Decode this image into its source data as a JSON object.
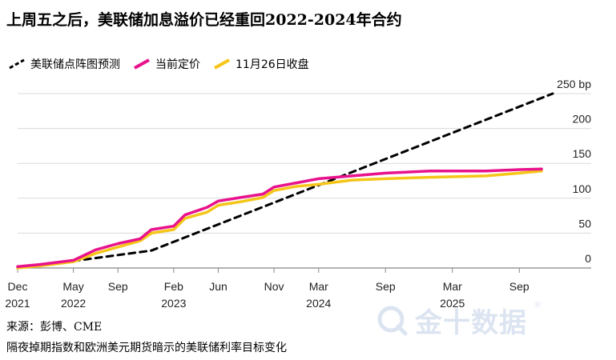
{
  "title": "上周五之后，美联储加息溢价已经重回2022-2024年合约",
  "legend": [
    {
      "label": "美联储点阵图预测",
      "color": "#000000",
      "style": "dashed"
    },
    {
      "label": "当前定价",
      "color": "#e8128c",
      "style": "solid"
    },
    {
      "label": "11月26日收盘",
      "color": "#f5c518",
      "style": "solid"
    }
  ],
  "footer": {
    "source": "来源：彭博、CME",
    "note": "隔夜掉期指数和欧洲美元期货暗示的美联储利率目标变化"
  },
  "watermark": {
    "text": "金十数据",
    "registered": "®"
  },
  "chart_data": {
    "type": "line",
    "ylabel_unit": "bp",
    "ylim": [
      0,
      250
    ],
    "yticks": [
      0,
      50,
      100,
      150,
      200,
      250
    ],
    "ytick_labels": [
      "0",
      "50",
      "100",
      "150",
      "200",
      "250 bp"
    ],
    "xlim": [
      "2021-12",
      "2025-12"
    ],
    "xticks": [
      {
        "x": "2021-12",
        "label": "Dec",
        "year": "2021"
      },
      {
        "x": "2022-05",
        "label": "May",
        "year": "2022"
      },
      {
        "x": "2022-09",
        "label": "Sep",
        "year": ""
      },
      {
        "x": "2023-02",
        "label": "Feb",
        "year": "2023"
      },
      {
        "x": "2023-06",
        "label": "Jun",
        "year": ""
      },
      {
        "x": "2023-11",
        "label": "Nov",
        "year": ""
      },
      {
        "x": "2024-03",
        "label": "Mar",
        "year": "2024"
      },
      {
        "x": "2024-09",
        "label": "Sep",
        "year": ""
      },
      {
        "x": "2025-03",
        "label": "Mar",
        "year": "2025"
      },
      {
        "x": "2025-09",
        "label": "Sep",
        "year": ""
      }
    ],
    "grid": true,
    "series": [
      {
        "name": "美联储点阵图预测",
        "color": "#000000",
        "dashed": true,
        "points": [
          [
            "2021-12",
            0
          ],
          [
            "2022-05",
            10
          ],
          [
            "2022-12",
            25
          ],
          [
            "2025-12",
            250
          ]
        ]
      },
      {
        "name": "11月26日收盘",
        "color": "#f5c518",
        "dashed": false,
        "points": [
          [
            "2021-12",
            0
          ],
          [
            "2022-02",
            3
          ],
          [
            "2022-05",
            9
          ],
          [
            "2022-07",
            21
          ],
          [
            "2022-09",
            30
          ],
          [
            "2022-11",
            39
          ],
          [
            "2022-12",
            50
          ],
          [
            "2023-02",
            55
          ],
          [
            "2023-03",
            71
          ],
          [
            "2023-05",
            80
          ],
          [
            "2023-06",
            90
          ],
          [
            "2023-08",
            95
          ],
          [
            "2023-10",
            101
          ],
          [
            "2023-11",
            111
          ],
          [
            "2024-01",
            117
          ],
          [
            "2024-03",
            120
          ],
          [
            "2024-06",
            126
          ],
          [
            "2024-09",
            128
          ],
          [
            "2025-01",
            130
          ],
          [
            "2025-06",
            132
          ],
          [
            "2025-09",
            136
          ],
          [
            "2025-11",
            139
          ]
        ]
      },
      {
        "name": "当前定价",
        "color": "#e8128c",
        "dashed": false,
        "points": [
          [
            "2021-12",
            2
          ],
          [
            "2022-02",
            5
          ],
          [
            "2022-05",
            11
          ],
          [
            "2022-07",
            26
          ],
          [
            "2022-09",
            35
          ],
          [
            "2022-11",
            42
          ],
          [
            "2022-12",
            55
          ],
          [
            "2023-02",
            60
          ],
          [
            "2023-03",
            76
          ],
          [
            "2023-05",
            87
          ],
          [
            "2023-06",
            96
          ],
          [
            "2023-08",
            101
          ],
          [
            "2023-10",
            106
          ],
          [
            "2023-11",
            116
          ],
          [
            "2024-01",
            122
          ],
          [
            "2024-03",
            128
          ],
          [
            "2024-06",
            132
          ],
          [
            "2024-09",
            136
          ],
          [
            "2025-01",
            139
          ],
          [
            "2025-06",
            139
          ],
          [
            "2025-09",
            141
          ],
          [
            "2025-11",
            142
          ]
        ]
      }
    ]
  }
}
